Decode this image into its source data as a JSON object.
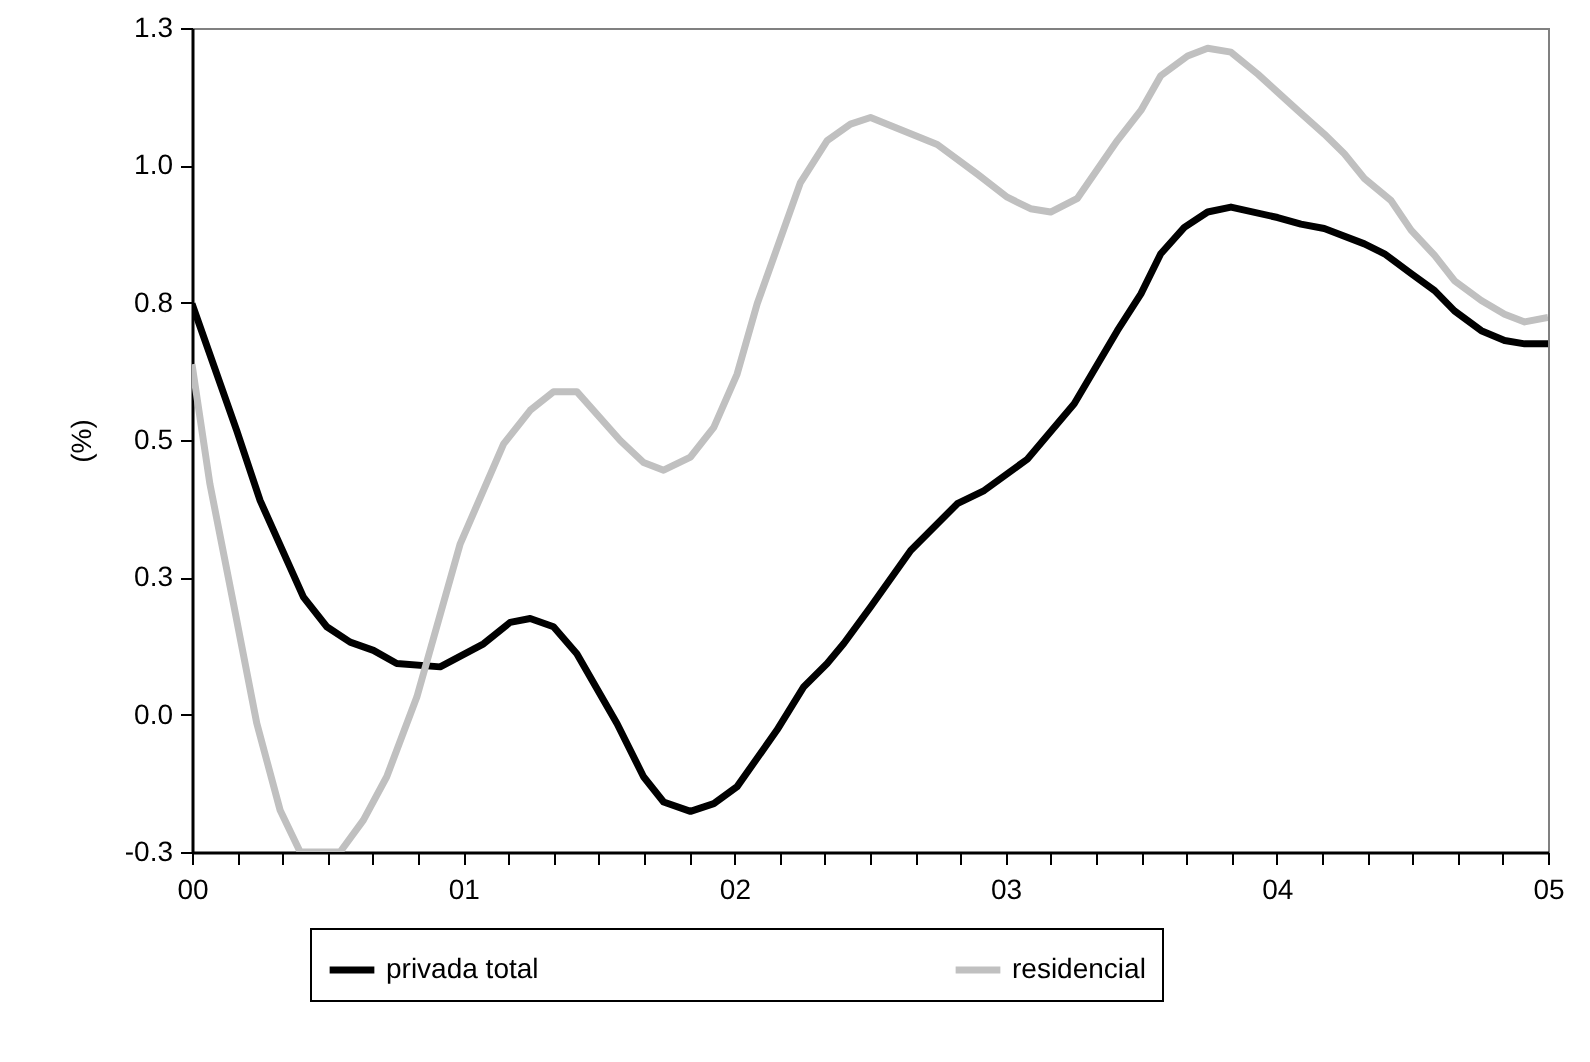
{
  "chart_data": {
    "type": "line",
    "ylabel": "(%)",
    "legend": "bottom",
    "grid": false,
    "marker": "none",
    "line_style": "solid",
    "xlim": [
      0,
      5
    ],
    "ylim": [
      -0.25,
      1.25
    ],
    "xticks": [
      {
        "value": 0,
        "label": "00"
      },
      {
        "value": 0.1667,
        "label": null
      },
      {
        "value": 0.3333,
        "label": null
      },
      {
        "value": 0.5,
        "label": null
      },
      {
        "value": 0.6667,
        "label": null
      },
      {
        "value": 0.8333,
        "label": null
      },
      {
        "value": 1,
        "label": "01"
      },
      {
        "value": 1.1667,
        "label": null
      },
      {
        "value": 1.3333,
        "label": null
      },
      {
        "value": 1.5,
        "label": null
      },
      {
        "value": 1.6667,
        "label": null
      },
      {
        "value": 1.8333,
        "label": null
      },
      {
        "value": 2,
        "label": "02"
      },
      {
        "value": 2.1667,
        "label": null
      },
      {
        "value": 2.3333,
        "label": null
      },
      {
        "value": 2.5,
        "label": null
      },
      {
        "value": 2.6667,
        "label": null
      },
      {
        "value": 2.8333,
        "label": null
      },
      {
        "value": 3,
        "label": "03"
      },
      {
        "value": 3.1667,
        "label": null
      },
      {
        "value": 3.3333,
        "label": null
      },
      {
        "value": 3.5,
        "label": null
      },
      {
        "value": 3.6667,
        "label": null
      },
      {
        "value": 3.8333,
        "label": null
      },
      {
        "value": 4,
        "label": "04"
      },
      {
        "value": 4.1667,
        "label": null
      },
      {
        "value": 4.3333,
        "label": null
      },
      {
        "value": 4.5,
        "label": null
      },
      {
        "value": 4.6667,
        "label": null
      },
      {
        "value": 4.8333,
        "label": null
      },
      {
        "value": 5,
        "label": "05"
      }
    ],
    "yticks": [
      {
        "value": -0.25,
        "label": "-0.3"
      },
      {
        "value": 0,
        "label": "0.0"
      },
      {
        "value": 0.25,
        "label": "0.3"
      },
      {
        "value": 0.5,
        "label": "0.5"
      },
      {
        "value": 0.75,
        "label": "0.8"
      },
      {
        "value": 1,
        "label": "1.0"
      },
      {
        "value": 1.25,
        "label": "1.3"
      }
    ],
    "series": [
      {
        "name": "privada total",
        "color": "#000000",
        "x": [
          0,
          0.165,
          0.251,
          0.411,
          0.497,
          0.583,
          0.669,
          0.755,
          0.915,
          1.075,
          1.173,
          1.247,
          1.333,
          1.419,
          1.567,
          1.665,
          1.739,
          1.838,
          1.924,
          2.01,
          2.157,
          2.256,
          2.342,
          2.404,
          2.502,
          2.65,
          2.822,
          2.921,
          3.08,
          3.253,
          3.326,
          3.412,
          3.499,
          3.572,
          3.659,
          3.745,
          3.831,
          4.003,
          4.089,
          4.175,
          4.323,
          4.397,
          4.495,
          4.582,
          4.655,
          4.754,
          4.84,
          4.914,
          5
        ],
        "values": [
          0.748,
          0.517,
          0.39,
          0.214,
          0.16,
          0.132,
          0.117,
          0.093,
          0.087,
          0.129,
          0.168,
          0.175,
          0.16,
          0.111,
          -0.016,
          -0.113,
          -0.159,
          -0.176,
          -0.162,
          -0.131,
          -0.028,
          0.051,
          0.093,
          0.13,
          0.196,
          0.299,
          0.384,
          0.408,
          0.465,
          0.566,
          0.627,
          0.699,
          0.766,
          0.839,
          0.887,
          0.915,
          0.924,
          0.905,
          0.893,
          0.885,
          0.857,
          0.839,
          0.803,
          0.772,
          0.735,
          0.699,
          0.681,
          0.675,
          0.675
        ]
      },
      {
        "name": "residencial",
        "color": "#c0c0c0",
        "x": [
          0,
          0.066,
          0.153,
          0.239,
          0.325,
          0.399,
          0.546,
          0.632,
          0.718,
          0.829,
          0.989,
          1.149,
          1.247,
          1.333,
          1.419,
          1.579,
          1.665,
          1.739,
          1.838,
          1.924,
          2.01,
          2.084,
          2.243,
          2.342,
          2.428,
          2.502,
          2.748,
          2.896,
          3.006,
          3.092,
          3.166,
          3.265,
          3.412,
          3.499,
          3.572,
          3.671,
          3.745,
          3.831,
          3.93,
          4.077,
          4.175,
          4.249,
          4.323,
          4.421,
          4.495,
          4.582,
          4.655,
          4.754,
          4.84,
          4.914,
          5
        ],
        "values": [
          0.638,
          0.42,
          0.202,
          -0.016,
          -0.174,
          -0.25,
          -0.25,
          -0.192,
          -0.113,
          0.032,
          0.311,
          0.493,
          0.554,
          0.588,
          0.588,
          0.499,
          0.459,
          0.445,
          0.469,
          0.523,
          0.62,
          0.748,
          0.968,
          1.045,
          1.075,
          1.087,
          1.038,
          0.984,
          0.942,
          0.921,
          0.915,
          0.94,
          1.045,
          1.1,
          1.163,
          1.199,
          1.213,
          1.206,
          1.166,
          1.1,
          1.057,
          1.021,
          0.976,
          0.936,
          0.882,
          0.836,
          0.79,
          0.754,
          0.729,
          0.715,
          0.723
        ]
      }
    ]
  }
}
